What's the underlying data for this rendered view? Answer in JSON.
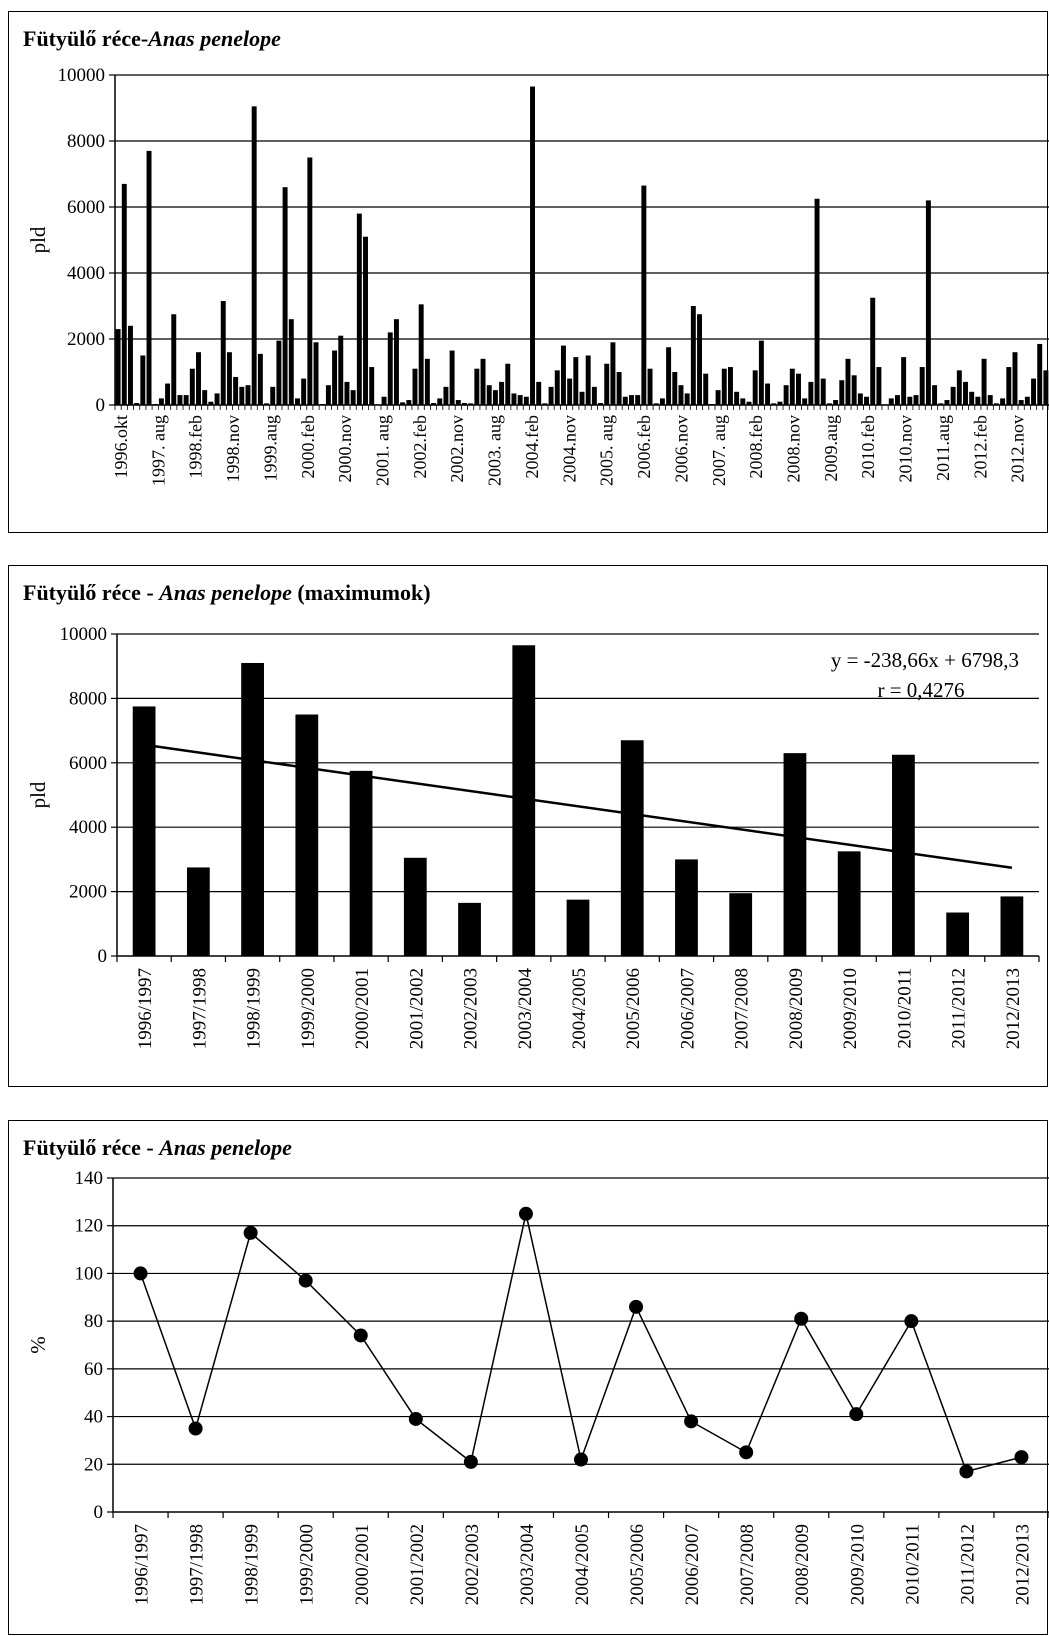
{
  "chart_data": [
    {
      "type": "bar",
      "title_prefix": "Fütyülő  réce-",
      "title_species": "Anas penelope",
      "title_suffix": "",
      "ylabel": "pld",
      "ylim": [
        0,
        10000
      ],
      "yticks": [
        "0",
        "2000",
        "4000",
        "6000",
        "8000",
        "10000"
      ],
      "grid": true,
      "tick_labels": [
        "1996.okt",
        "1997. aug",
        "1998.feb",
        "1998.nov",
        "1999.aug",
        "2000.feb",
        "2000.nov",
        "2001. aug",
        "2002.feb",
        "2002.nov",
        "2003. aug",
        "2004.feb",
        "2004.nov",
        "2005. aug",
        "2006.feb",
        "2006.nov",
        "2007. aug",
        "2008.feb",
        "2008.nov",
        "2009.aug",
        "2010.feb",
        "2010.nov",
        "2011.aug",
        "2012.feb",
        "2012.nov"
      ],
      "values": [
        2300,
        6700,
        2400,
        60,
        1500,
        7700,
        30,
        200,
        650,
        2750,
        300,
        300,
        1100,
        1600,
        450,
        100,
        350,
        3150,
        1600,
        850,
        550,
        600,
        9050,
        1550,
        50,
        550,
        1950,
        6600,
        2600,
        200,
        800,
        7500,
        1900,
        30,
        600,
        1650,
        2100,
        700,
        450,
        5800,
        5100,
        1150,
        20,
        250,
        2200,
        2600,
        80,
        150,
        1100,
        3050,
        1400,
        60,
        200,
        550,
        1650,
        150,
        60,
        50,
        1100,
        1400,
        600,
        450,
        700,
        1250,
        350,
        300,
        250,
        9650,
        700,
        50,
        550,
        1050,
        1800,
        800,
        1450,
        400,
        1500,
        550,
        60,
        1250,
        1900,
        1000,
        250,
        300,
        300,
        6650,
        1100,
        50,
        200,
        1750,
        1000,
        600,
        350,
        3000,
        2750,
        950,
        30,
        450,
        1100,
        1150,
        400,
        200,
        100,
        1050,
        1950,
        650,
        50,
        100,
        600,
        1100,
        950,
        200,
        700,
        6250,
        800,
        50,
        150,
        750,
        1400,
        900,
        350,
        250,
        3250,
        1150,
        20,
        200,
        300,
        1450,
        250,
        300,
        1150,
        6200,
        600,
        50,
        150,
        550,
        1050,
        700,
        400,
        250,
        1400,
        300,
        50,
        200,
        1150,
        1600,
        150,
        250,
        800,
        1850,
        1050
      ]
    },
    {
      "type": "bar",
      "title_prefix": "Fütyülő  réce - ",
      "title_species": "Anas penelope",
      "title_suffix": " (maximumok)",
      "ylabel": "pld",
      "ylim": [
        0,
        10000
      ],
      "yticks": [
        "0",
        "2000",
        "4000",
        "6000",
        "8000",
        "10000"
      ],
      "grid": true,
      "categories": [
        "1996/1997",
        "1997/1998",
        "1998/1999",
        "1999/2000",
        "2000/2001",
        "2001/2002",
        "2002/2003",
        "2003/2004",
        "2004/2005",
        "2005/2006",
        "2006/2007",
        "2007/2008",
        "2008/2009",
        "2009/2010",
        "2010/2011",
        "2011/2012",
        "2012/2013"
      ],
      "values": [
        7750,
        2750,
        9100,
        7500,
        5750,
        3050,
        1650,
        9650,
        1750,
        6700,
        3000,
        1950,
        6300,
        3250,
        6250,
        1350,
        1850
      ],
      "trendline": {
        "slope": -238.66,
        "intercept": 6798.3
      },
      "annotation_line1": "y = -238,66x  + 6798,3",
      "annotation_line2": "r = 0,4276"
    },
    {
      "type": "line",
      "title_prefix": "Fütyülő  réce - ",
      "title_species": "Anas penelope",
      "title_suffix": "",
      "ylabel": "%",
      "ylim": [
        0,
        140
      ],
      "yticks": [
        "0",
        "20",
        "40",
        "60",
        "80",
        "100",
        "120",
        "140"
      ],
      "grid": true,
      "categories": [
        "1996/1997",
        "1997/1998",
        "1998/1999",
        "1999/2000",
        "2000/2001",
        "2001/2002",
        "2002/2003",
        "2003/2004",
        "2004/2005",
        "2005/2006",
        "2006/2007",
        "2007/2008",
        "2008/2009",
        "2009/2010",
        "2010/2011",
        "2011/2012",
        "2012/2013"
      ],
      "values": [
        100,
        35,
        117,
        97,
        74,
        39,
        21,
        125,
        22,
        86,
        38,
        25,
        81,
        41,
        80,
        17,
        23
      ]
    }
  ]
}
